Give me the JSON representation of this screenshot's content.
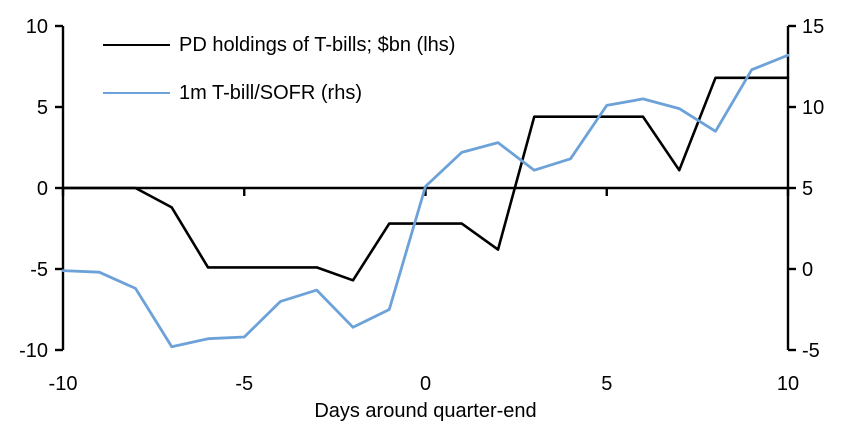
{
  "chart_data": {
    "type": "line",
    "xlabel": "Days around quarter-end",
    "grid": false,
    "legend_position": "top-left",
    "x": [
      -10,
      -9,
      -8,
      -7,
      -6,
      -5,
      -4,
      -3,
      -2,
      -1,
      0,
      1,
      2,
      3,
      4,
      5,
      6,
      7,
      8,
      9,
      10
    ],
    "x_ticks": [
      -10,
      -5,
      0,
      5,
      10
    ],
    "left_axis": {
      "min": -10,
      "max": 10,
      "ticks": [
        10,
        5,
        0,
        -5,
        -10
      ]
    },
    "right_axis": {
      "min": -5,
      "max": 15,
      "ticks": [
        15,
        10,
        5,
        0,
        -5
      ]
    },
    "series": [
      {
        "name": "PD holdings of T-bills; $bn (lhs)",
        "axis": "left",
        "color": "#000000",
        "values": [
          0,
          0,
          0,
          -1.2,
          -4.9,
          -4.9,
          -4.9,
          -4.9,
          -5.7,
          -2.2,
          -2.2,
          -2.2,
          -3.8,
          4.4,
          4.4,
          4.4,
          4.4,
          1.1,
          6.8,
          6.8,
          6.8
        ]
      },
      {
        "name": "1m T-bill/SOFR (rhs)",
        "axis": "right",
        "color": "#6DA2D8",
        "values": [
          -0.1,
          -0.2,
          -1.2,
          -4.8,
          -4.3,
          -4.2,
          -2.0,
          -1.3,
          -3.6,
          -2.5,
          5.1,
          7.2,
          7.8,
          6.1,
          6.8,
          10.1,
          10.5,
          9.9,
          8.5,
          12.3,
          13.2
        ]
      }
    ]
  }
}
